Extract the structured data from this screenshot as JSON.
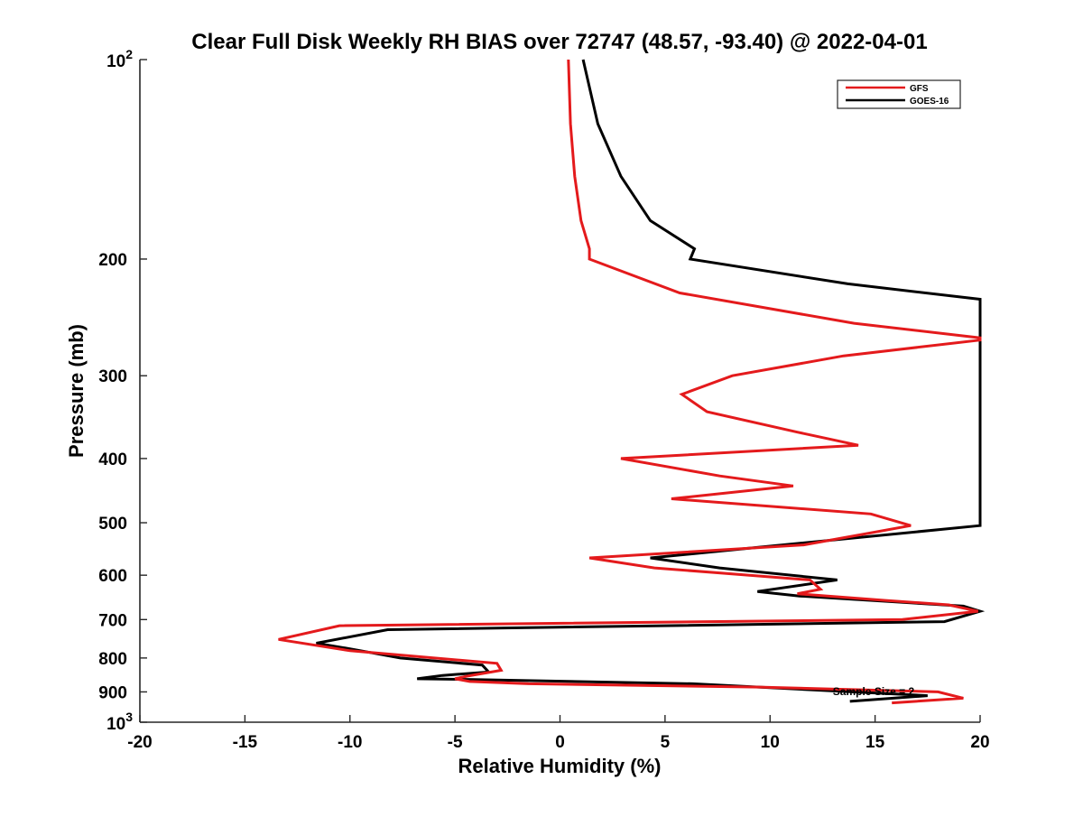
{
  "chart_data": {
    "type": "line",
    "title": "Clear Full Disk Weekly RH BIAS over 72747 (48.57, -93.40) @ 2022-04-01",
    "xlabel": "Relative Humidity (%)",
    "ylabel": "Pressure (mb)",
    "xlim": [
      -20,
      20
    ],
    "ylim": [
      100,
      1000
    ],
    "yscale": "log",
    "yreversed": true,
    "grid": false,
    "legend_position": "top-right",
    "x_ticks": [
      {
        "value": -20,
        "label": "-20"
      },
      {
        "value": -15,
        "label": "-15"
      },
      {
        "value": -10,
        "label": "-10"
      },
      {
        "value": -5,
        "label": "-5"
      },
      {
        "value": 0,
        "label": "0"
      },
      {
        "value": 5,
        "label": "5"
      },
      {
        "value": 10,
        "label": "10"
      },
      {
        "value": 15,
        "label": "15"
      },
      {
        "value": 20,
        "label": "20"
      }
    ],
    "y_ticks": [
      {
        "value": 100,
        "base": "10",
        "exp": "2"
      },
      {
        "value": 200,
        "label": "200"
      },
      {
        "value": 300,
        "label": "300"
      },
      {
        "value": 400,
        "label": "400"
      },
      {
        "value": 500,
        "label": "500"
      },
      {
        "value": 600,
        "label": "600"
      },
      {
        "value": 700,
        "label": "700"
      },
      {
        "value": 800,
        "label": "800"
      },
      {
        "value": 900,
        "label": "900"
      },
      {
        "value": 1000,
        "base": "10",
        "exp": "3"
      }
    ],
    "annotation": "Sample Size = 2",
    "series": [
      {
        "name": "GFS",
        "color": "#e41a1c",
        "points": [
          [
            0.4,
            100
          ],
          [
            0.5,
            125
          ],
          [
            0.7,
            150
          ],
          [
            1.0,
            175
          ],
          [
            1.4,
            193
          ],
          [
            1.4,
            200
          ],
          [
            5.7,
            225
          ],
          [
            14.0,
            250
          ],
          [
            20.0,
            263
          ],
          [
            20.0,
            265
          ],
          [
            13.5,
            280
          ],
          [
            8.2,
            300
          ],
          [
            5.8,
            320
          ],
          [
            7.0,
            340
          ],
          [
            11.3,
            365
          ],
          [
            14.2,
            382
          ],
          [
            2.9,
            400
          ],
          [
            7.6,
            425
          ],
          [
            11.1,
            440
          ],
          [
            5.3,
            460
          ],
          [
            14.8,
            485
          ],
          [
            16.7,
            505
          ],
          [
            14.5,
            520
          ],
          [
            11.6,
            540
          ],
          [
            1.4,
            565
          ],
          [
            4.5,
            585
          ],
          [
            11.9,
            610
          ],
          [
            12.4,
            630
          ],
          [
            11.3,
            640
          ],
          [
            15.5,
            655
          ],
          [
            18.5,
            665
          ],
          [
            19.9,
            680
          ],
          [
            16.3,
            700
          ],
          [
            -10.5,
            715
          ],
          [
            -13.4,
            750
          ],
          [
            -10.0,
            780
          ],
          [
            -3.0,
            815
          ],
          [
            -2.8,
            835
          ],
          [
            -4.4,
            852
          ],
          [
            -5.0,
            860
          ],
          [
            -4.3,
            868
          ],
          [
            -1.5,
            875
          ],
          [
            9.5,
            885
          ],
          [
            18.0,
            900
          ],
          [
            19.2,
            920
          ],
          [
            15.8,
            935
          ]
        ]
      },
      {
        "name": "GOES-16",
        "color": "#000000",
        "points": [
          [
            1.1,
            100
          ],
          [
            1.8,
            125
          ],
          [
            2.9,
            150
          ],
          [
            4.3,
            175
          ],
          [
            6.4,
            193
          ],
          [
            6.2,
            200
          ],
          [
            13.7,
            218
          ],
          [
            20.0,
            230
          ],
          [
            20.0,
            505
          ],
          [
            4.3,
            565
          ],
          [
            7.6,
            585
          ],
          [
            13.2,
            610
          ],
          [
            9.4,
            635
          ],
          [
            11.4,
            645
          ],
          [
            19.2,
            668
          ],
          [
            20.0,
            680
          ],
          [
            18.3,
            705
          ],
          [
            -8.2,
            725
          ],
          [
            -11.6,
            760
          ],
          [
            -10.0,
            775
          ],
          [
            -7.6,
            800
          ],
          [
            -3.7,
            820
          ],
          [
            -3.4,
            840
          ],
          [
            -5.6,
            850
          ],
          [
            -6.8,
            860
          ],
          [
            -4.1,
            862
          ],
          [
            6.3,
            875
          ],
          [
            17.5,
            912
          ],
          [
            13.8,
            930
          ]
        ]
      }
    ]
  }
}
